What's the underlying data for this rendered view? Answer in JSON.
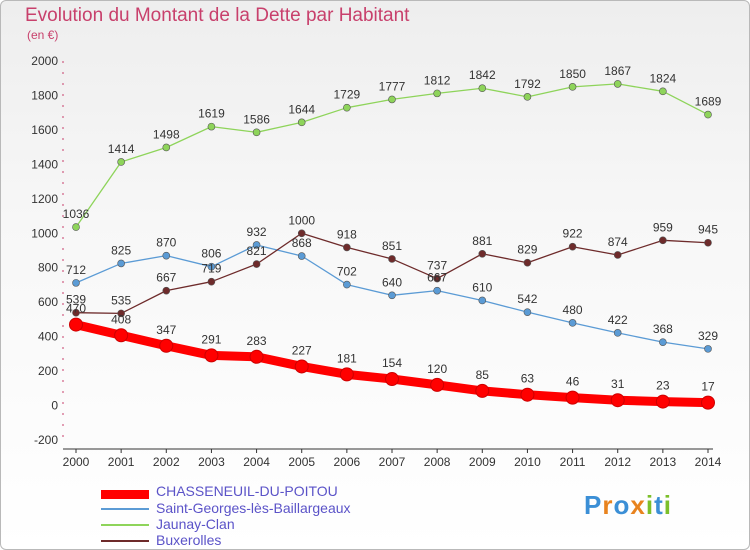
{
  "title": "Evolution du Montant de la Dette par Habitant",
  "subtitle": "(en €)",
  "brand": [
    "P",
    "r",
    "o",
    "x",
    "i",
    "t",
    "i"
  ],
  "brand_colors": [
    "#3b8fd6",
    "#e8831e",
    "#3b8fd6",
    "#e8831e",
    "#7cbf2a",
    "#3b8fd6",
    "#7cbf2a"
  ],
  "chart_data": {
    "type": "line",
    "x": [
      "2000",
      "2001",
      "2002",
      "2003",
      "2004",
      "2005",
      "2006",
      "2007",
      "2008",
      "2009",
      "2010",
      "2011",
      "2012",
      "2013",
      "2014"
    ],
    "ylim": [
      -200,
      2000
    ],
    "yticks": [
      -200,
      0,
      200,
      400,
      600,
      800,
      1000,
      1200,
      1400,
      1600,
      1800,
      2000
    ],
    "grid": false,
    "legend": "bottom-left",
    "series": [
      {
        "name": "CHASSENEUIL-DU-POITOU",
        "color": "#ff0000",
        "width": 9,
        "values": [
          470,
          408,
          347,
          291,
          283,
          227,
          181,
          154,
          120,
          85,
          63,
          46,
          31,
          23,
          17
        ]
      },
      {
        "name": "Saint-Georges-lès-Baillargeaux",
        "color": "#5b9bd5",
        "width": 1.3,
        "values": [
          712,
          825,
          870,
          806,
          932,
          868,
          702,
          640,
          667,
          610,
          542,
          480,
          422,
          368,
          329
        ]
      },
      {
        "name": "Jaunay-Clan",
        "color": "#8ed45a",
        "width": 1.3,
        "values": [
          1036,
          1414,
          1498,
          1619,
          1586,
          1644,
          1729,
          1777,
          1812,
          1842,
          1792,
          1850,
          1867,
          1824,
          1689
        ]
      },
      {
        "name": "Buxerolles",
        "color": "#6e2b2b",
        "width": 1.3,
        "values": [
          539,
          535,
          667,
          719,
          821,
          1000,
          918,
          851,
          737,
          881,
          829,
          922,
          874,
          959,
          945
        ]
      }
    ]
  }
}
